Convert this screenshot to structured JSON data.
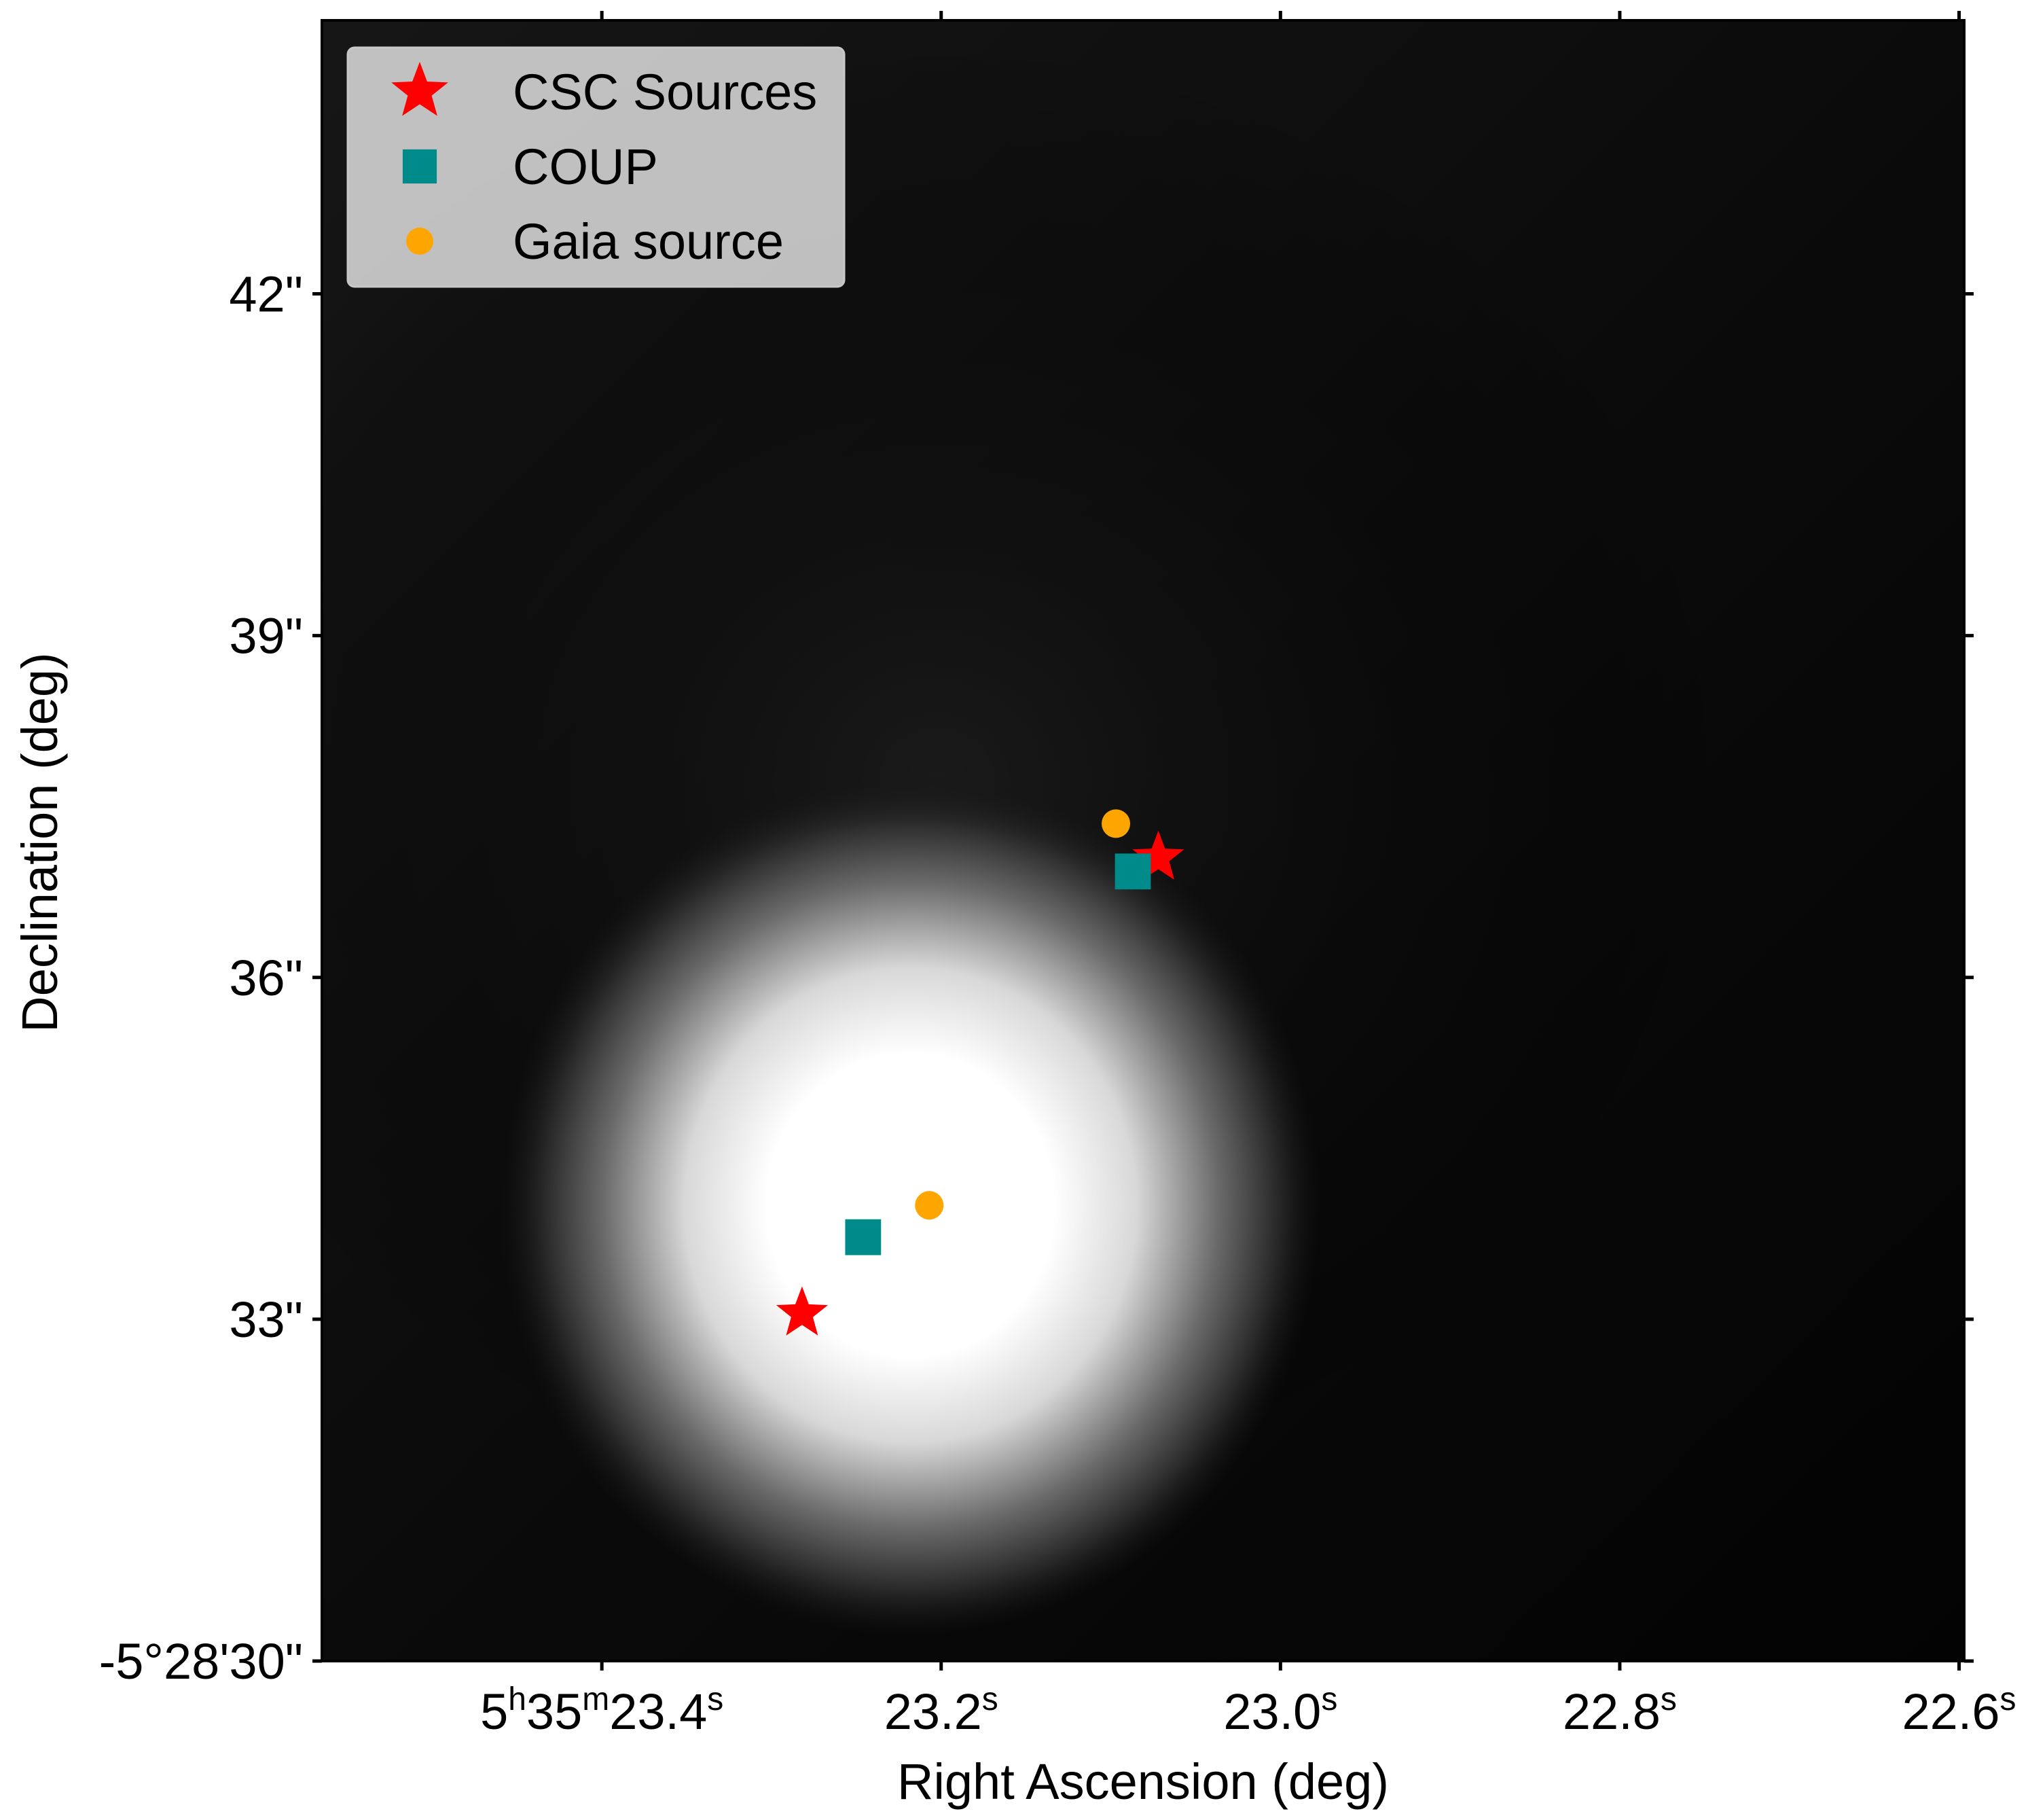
{
  "chart_data": {
    "type": "scatter",
    "xlabel": "Right Ascension (deg)",
    "ylabel": "Declination (deg)",
    "xlim": [
      23.565,
      22.597
    ],
    "ylim": [
      44.4,
      30.0
    ],
    "x_ticks": [
      {
        "value": 23.4,
        "label": "5h35m23.4s",
        "h": "5",
        "m": "35",
        "s": "23.4"
      },
      {
        "value": 23.2,
        "label": "23.2s",
        "s": "23.2"
      },
      {
        "value": 23.0,
        "label": "23.0s",
        "s": "23.0"
      },
      {
        "value": 22.8,
        "label": "22.8s",
        "s": "22.8"
      },
      {
        "value": 22.6,
        "label": "22.6s",
        "s": "22.6"
      }
    ],
    "y_ticks": [
      {
        "value": 30,
        "label": "-5°28'30\""
      },
      {
        "value": 33,
        "label": "33\""
      },
      {
        "value": 36,
        "label": "36\""
      },
      {
        "value": 39,
        "label": "39\""
      },
      {
        "value": 42,
        "label": "42\""
      }
    ],
    "background": {
      "image": "grayscale",
      "glow_center": [
        23.218,
        34.0
      ],
      "glow_radius": [
        0.11,
        1.8
      ]
    },
    "series": [
      {
        "name": "CSC Sources",
        "marker": "star",
        "color": "#ff0000",
        "points": [
          [
            23.282,
            33.05
          ],
          [
            23.072,
            37.05
          ]
        ]
      },
      {
        "name": "COUP",
        "marker": "square",
        "color": "#008b8b",
        "points": [
          [
            23.246,
            33.72
          ],
          [
            23.087,
            36.93
          ]
        ]
      },
      {
        "name": "Gaia source",
        "marker": "circle",
        "color": "#ffa500",
        "points": [
          [
            23.207,
            34.0
          ],
          [
            23.097,
            37.35
          ]
        ]
      }
    ],
    "legend": {
      "placement": "top-left"
    },
    "grid": false
  }
}
